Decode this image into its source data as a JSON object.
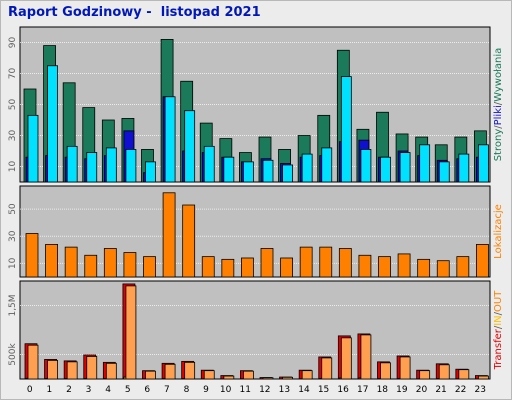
{
  "title": "Raport Godzinowy -  listopad 2021",
  "colors": {
    "strony": "#1a7a5a",
    "pliki": "#1010d0",
    "wywolania": "#00e0ff",
    "lokalizacje": "#ff8000",
    "transfer": "#e00000",
    "in": "#ffc000",
    "out": "#ffa050",
    "panel_bg": "#c0c0c0"
  },
  "side_labels": {
    "panel1": [
      {
        "text": "Strony",
        "color": "#1a7a5a"
      },
      {
        "text": "/",
        "color": "#606060"
      },
      {
        "text": "Pliki",
        "color": "#1010d0"
      },
      {
        "text": "/",
        "color": "#606060"
      },
      {
        "text": "Wywołania",
        "color": "#1a7a5a"
      }
    ],
    "panel2": [
      {
        "text": "Lokalizacje",
        "color": "#ff8000"
      }
    ],
    "panel3": [
      {
        "text": "Transfer",
        "color": "#e00000"
      },
      {
        "text": "/",
        "color": "#606060"
      },
      {
        "text": "IN",
        "color": "#ffc000"
      },
      {
        "text": "/",
        "color": "#606060"
      },
      {
        "text": "OUT",
        "color": "#ff8000"
      }
    ]
  },
  "chart_data": [
    {
      "type": "bar",
      "categories": [
        "0",
        "1",
        "2",
        "3",
        "4",
        "5",
        "6",
        "7",
        "8",
        "9",
        "10",
        "11",
        "12",
        "13",
        "14",
        "15",
        "16",
        "17",
        "18",
        "19",
        "20",
        "21",
        "22",
        "23"
      ],
      "yticks": [
        10,
        30,
        50,
        70,
        90
      ],
      "ylim": [
        0,
        100
      ],
      "series": [
        {
          "name": "Strony",
          "values": [
            60,
            88,
            64,
            48,
            40,
            41,
            21,
            92,
            65,
            38,
            28,
            19,
            29,
            21,
            30,
            43,
            85,
            34,
            45,
            31,
            29,
            24,
            29,
            33
          ]
        },
        {
          "name": "Pliki",
          "values": [
            16,
            17,
            16,
            15,
            17,
            33,
            6,
            55,
            20,
            19,
            16,
            13,
            15,
            12,
            16,
            17,
            26,
            27,
            16,
            20,
            17,
            14,
            15,
            16
          ]
        },
        {
          "name": "Wywołania",
          "values": [
            43,
            75,
            23,
            19,
            22,
            21,
            13,
            55,
            46,
            23,
            16,
            13,
            14,
            11,
            18,
            22,
            68,
            21,
            16,
            19,
            24,
            13,
            18,
            24
          ]
        }
      ]
    },
    {
      "type": "bar",
      "categories": [
        "0",
        "1",
        "2",
        "3",
        "4",
        "5",
        "6",
        "7",
        "8",
        "9",
        "10",
        "11",
        "12",
        "13",
        "14",
        "15",
        "16",
        "17",
        "18",
        "19",
        "20",
        "21",
        "22",
        "23"
      ],
      "yticks": [
        10,
        30,
        50
      ],
      "ylim": [
        0,
        67
      ],
      "series": [
        {
          "name": "Lokalizacje",
          "values": [
            32,
            24,
            22,
            16,
            21,
            18,
            15,
            62,
            53,
            15,
            13,
            14,
            21,
            14,
            22,
            22,
            21,
            16,
            15,
            17,
            13,
            12,
            15,
            24
          ]
        }
      ]
    },
    {
      "type": "bar",
      "categories": [
        "0",
        "1",
        "2",
        "3",
        "4",
        "5",
        "6",
        "7",
        "8",
        "9",
        "10",
        "11",
        "12",
        "13",
        "14",
        "15",
        "16",
        "17",
        "18",
        "19",
        "20",
        "21",
        "22",
        "23"
      ],
      "yticks": [
        500,
        1500
      ],
      "ytick_labels": [
        "500k",
        "1,5M"
      ],
      "ylim": [
        0,
        2000
      ],
      "series": [
        {
          "name": "Transfer",
          "values": [
            720,
            400,
            370,
            490,
            340,
            1940,
            170,
            320,
            360,
            180,
            70,
            170,
            30,
            40,
            180,
            450,
            880,
            920,
            350,
            470,
            180,
            310,
            200,
            70
          ]
        },
        {
          "name": "IN",
          "values": [
            14,
            10,
            9,
            12,
            8,
            40,
            4,
            8,
            9,
            4,
            2,
            4,
            1,
            1,
            4,
            11,
            20,
            21,
            9,
            11,
            4,
            8,
            5,
            2
          ]
        },
        {
          "name": "OUT",
          "values": [
            690,
            380,
            350,
            460,
            320,
            1900,
            160,
            300,
            340,
            170,
            60,
            160,
            25,
            35,
            170,
            430,
            840,
            900,
            330,
            450,
            170,
            290,
            190,
            60
          ]
        }
      ]
    }
  ]
}
